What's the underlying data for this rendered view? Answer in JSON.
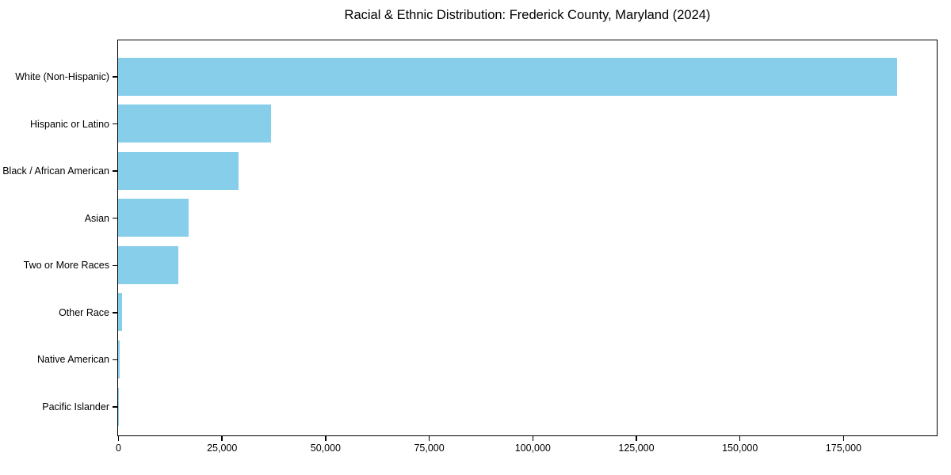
{
  "title": "Racial & Ethnic Distribution: Frederick County, Maryland (2024)",
  "chart_data": {
    "type": "bar",
    "orientation": "horizontal",
    "title": "Racial & Ethnic Distribution: Frederick County, Maryland (2024)",
    "xlabel": "",
    "ylabel": "",
    "categories": [
      "White (Non-Hispanic)",
      "Hispanic or Latino",
      "Black / African American",
      "Asian",
      "Two or More Races",
      "Other Race",
      "Native American",
      "Pacific Islander"
    ],
    "values": [
      188000,
      37000,
      29000,
      17000,
      14500,
      900,
      300,
      100
    ],
    "xlim": [
      0,
      197400
    ],
    "x_ticks": [
      0,
      25000,
      50000,
      75000,
      100000,
      125000,
      150000,
      175000
    ],
    "x_tick_labels": [
      "0",
      "25,000",
      "50,000",
      "75,000",
      "100,000",
      "125,000",
      "150,000",
      "175,000"
    ],
    "grid": false,
    "legend": null,
    "bar_color": "#87CEEB",
    "axis_color": "#000000",
    "text_color": "#000000",
    "background_color": "#ffffff"
  }
}
